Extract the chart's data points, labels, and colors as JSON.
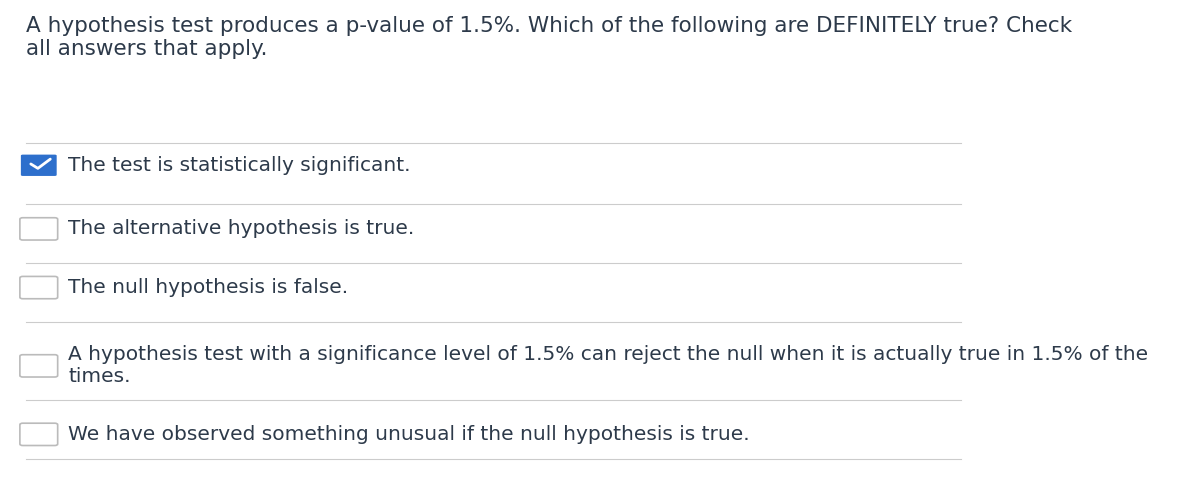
{
  "background_color": "#ffffff",
  "question_text": "A hypothesis test produces a p-value of 1.5%. Which of the following are DEFINITELY true? Check\nall answers that apply.",
  "question_font_size": 15.5,
  "question_color": "#2d3a4a",
  "options": [
    {
      "text": "The test is statistically significant.",
      "checked": true,
      "checkbox_color": "#2d6fcc",
      "text_color": "#2d3a4a"
    },
    {
      "text": "The alternative hypothesis is true.",
      "checked": false,
      "checkbox_color": "#aaaaaa",
      "text_color": "#2d3a4a"
    },
    {
      "text": "The null hypothesis is false.",
      "checked": false,
      "checkbox_color": "#aaaaaa",
      "text_color": "#2d3a4a"
    },
    {
      "text": "A hypothesis test with a significance level of 1.5% can reject the null when it is actually true in 1.5% of the\ntimes.",
      "checked": false,
      "checkbox_color": "#aaaaaa",
      "text_color": "#2d3a4a"
    },
    {
      "text": "We have observed something unusual if the null hypothesis is true.",
      "checked": false,
      "checkbox_color": "#aaaaaa",
      "text_color": "#2d3a4a"
    }
  ],
  "divider_color": "#cccccc",
  "divider_linewidth": 0.8,
  "option_font_size": 14.5,
  "checkbox_size": 0.018,
  "fig_width": 12.0,
  "fig_height": 4.92
}
